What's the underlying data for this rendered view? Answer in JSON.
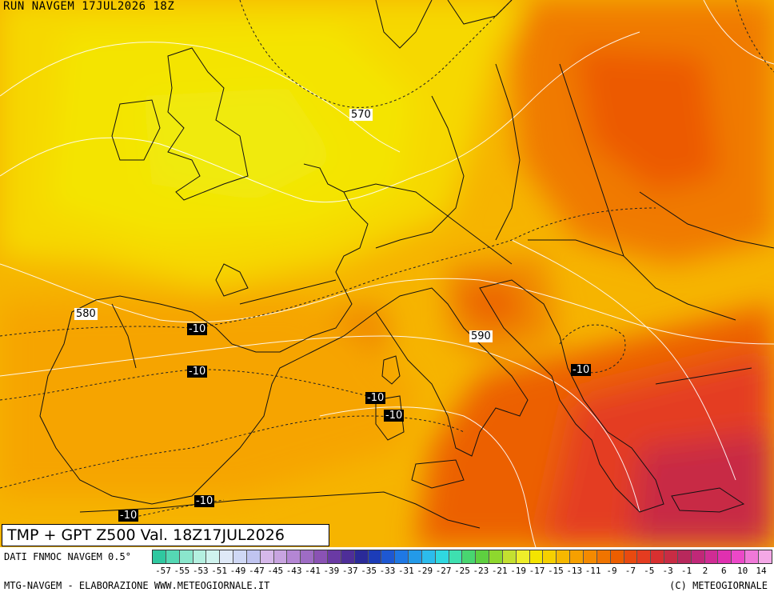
{
  "header": {
    "title": "RUN NAVGEM 17JUL2026 18Z"
  },
  "valid_box": {
    "text": "TMP + GPT Z500 Val. 18Z17JUL2026"
  },
  "footer": {
    "source": "DATI FNMOC NAVGEM 0.5°",
    "credit": "MTG-NAVGEM - ELABORAZIONE WWW.METEOGIORNALE.IT",
    "copyright": "(C) METEOGIORNALE"
  },
  "map_labels": {
    "gpt": [
      {
        "name": "label-570",
        "text": "570"
      },
      {
        "name": "label-580",
        "text": "580"
      },
      {
        "name": "label-590",
        "text": "590"
      }
    ],
    "tmp": [
      {
        "name": "label-minus10-a",
        "text": "-10"
      },
      {
        "name": "label-minus10-b",
        "text": "-10"
      },
      {
        "name": "label-minus10-c",
        "text": "-10"
      },
      {
        "name": "label-minus10-d",
        "text": "-10"
      },
      {
        "name": "label-minus10-e",
        "text": "-10"
      },
      {
        "name": "label-minus10-f",
        "text": "-10"
      },
      {
        "name": "label-minus10-g",
        "text": "-10"
      }
    ]
  },
  "color_scale": {
    "labels": [
      "-57",
      "-55",
      "-53",
      "-51",
      "-49",
      "-47",
      "-45",
      "-43",
      "-41",
      "-39",
      "-37",
      "-35",
      "-33",
      "-31",
      "-29",
      "-27",
      "-25",
      "-23",
      "-21",
      "-19",
      "-17",
      "-15",
      "-13",
      "-11",
      "-9",
      "-7",
      "-5",
      "-3",
      "-1",
      "2",
      "6",
      "10",
      "14"
    ],
    "colors": [
      "#2fc8a0",
      "#55d8b4",
      "#8ae6cc",
      "#b4f0e0",
      "#cff3ee",
      "#dfe9f7",
      "#cfd8f5",
      "#c0c4f0",
      "#d6b8ea",
      "#c8a4e0",
      "#b486d4",
      "#9e6cc4",
      "#8a52b4",
      "#6a3aa4",
      "#4e2e98",
      "#2a2a98",
      "#1c3cb8",
      "#1e58d2",
      "#1f78e4",
      "#239ae8",
      "#2cbcec",
      "#2fd8e0",
      "#3ee0b0",
      "#48d670",
      "#5ed040",
      "#8ed82e",
      "#c4e030",
      "#eeee2a",
      "#f4e400",
      "#f6d000",
      "#f6b800",
      "#f6a000",
      "#f48a00",
      "#f07400",
      "#ec5e00",
      "#e84a10",
      "#e43c20",
      "#d83030",
      "#c82c44",
      "#b8285c",
      "#c02878",
      "#d02c94",
      "#e030b0",
      "#ec48c8",
      "#f078d8",
      "#f4a8e6"
    ]
  }
}
